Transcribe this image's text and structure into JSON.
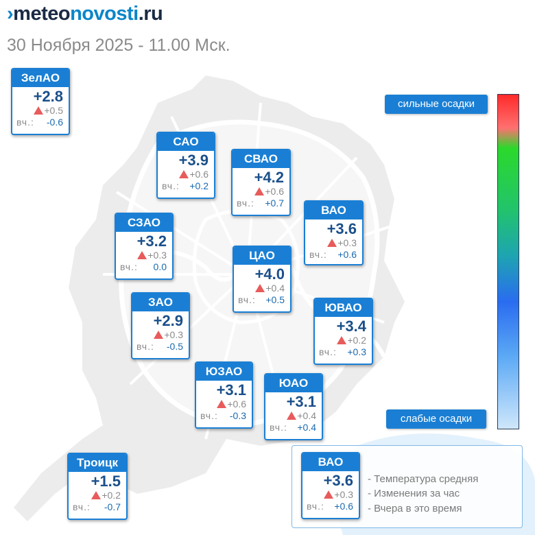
{
  "header": {
    "logo_prefix": "meteo",
    "logo_name": "novosti",
    "logo_suffix": ".ru",
    "date_line": "30 Ноября 2025 - 11.00 Мск."
  },
  "districts": [
    {
      "id": "zelao",
      "name": "ЗелАО",
      "temp": "+2.8",
      "change": "+0.5",
      "yesterday_label": "вч.:",
      "yesterday": "-0.6"
    },
    {
      "id": "sao",
      "name": "САО",
      "temp": "+3.9",
      "change": "+0.6",
      "yesterday_label": "вч.:",
      "yesterday": "+0.2"
    },
    {
      "id": "svao",
      "name": "СВАО",
      "temp": "+4.2",
      "change": "+0.6",
      "yesterday_label": "вч.:",
      "yesterday": "+0.7"
    },
    {
      "id": "vao",
      "name": "ВАО",
      "temp": "+3.6",
      "change": "+0.3",
      "yesterday_label": "вч.:",
      "yesterday": "+0.6"
    },
    {
      "id": "szao",
      "name": "СЗАО",
      "temp": "+3.2",
      "change": "+0.3",
      "yesterday_label": "вч.:",
      "yesterday": "0.0"
    },
    {
      "id": "cao",
      "name": "ЦАО",
      "temp": "+4.0",
      "change": "+0.4",
      "yesterday_label": "вч.:",
      "yesterday": "+0.5"
    },
    {
      "id": "zao",
      "name": "ЗАО",
      "temp": "+2.9",
      "change": "+0.3",
      "yesterday_label": "вч.:",
      "yesterday": "-0.5"
    },
    {
      "id": "yuvao",
      "name": "ЮВАО",
      "temp": "+3.4",
      "change": "+0.2",
      "yesterday_label": "вч.:",
      "yesterday": "+0.3"
    },
    {
      "id": "yuzao",
      "name": "ЮЗАО",
      "temp": "+3.1",
      "change": "+0.6",
      "yesterday_label": "вч.:",
      "yesterday": "-0.3"
    },
    {
      "id": "yuao",
      "name": "ЮАО",
      "temp": "+3.1",
      "change": "+0.4",
      "yesterday_label": "вч.:",
      "yesterday": "+0.4"
    },
    {
      "id": "troick",
      "name": "Троицк",
      "temp": "+1.5",
      "change": "+0.2",
      "yesterday_label": "вч.:",
      "yesterday": "-0.7"
    }
  ],
  "scale": {
    "strong_label": "сильные осадки",
    "weak_label": "слабые осадки"
  },
  "legend": {
    "sample": {
      "name": "ВАО",
      "temp": "+3.6",
      "change": "+0.3",
      "yesterday_label": "вч.:",
      "yesterday": "+0.6"
    },
    "line1": "- Температура средняя",
    "line2": "- Изменения за час",
    "line3": "- Вчера в это время"
  },
  "colors": {
    "accent": "#1a7fd4",
    "rise_arrow": "#e85b5b",
    "temp_text": "#1a4f8a"
  }
}
